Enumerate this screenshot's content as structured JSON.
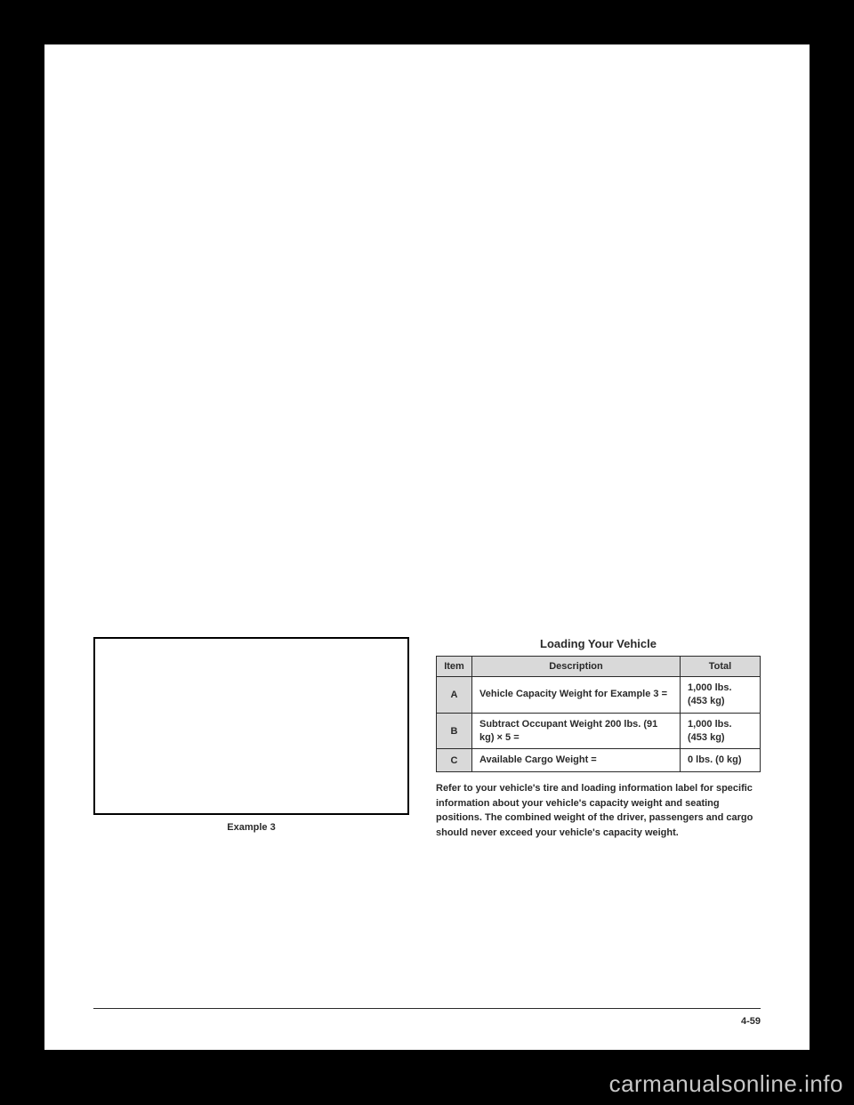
{
  "figure": {
    "caption": "Example 3"
  },
  "table": {
    "title": "Loading Your Vehicle",
    "headers": [
      "Item",
      "Description",
      "Total"
    ],
    "rows": [
      {
        "item": "A",
        "desc": "Vehicle Capacity Weight for Example 3 =",
        "total": "1,000 lbs. (453 kg)"
      },
      {
        "item": "B",
        "desc": "Subtract Occupant Weight 200 lbs. (91 kg) × 5 =",
        "total": "1,000 lbs. (453 kg)"
      },
      {
        "item": "C",
        "desc": "Available Cargo Weight =",
        "total": "0 lbs. (0 kg)"
      }
    ]
  },
  "bodytext": "Refer to your vehicle's tire and loading information label for specific information about your vehicle's capacity weight and seating positions. The combined weight of the driver, passengers and cargo should never exceed your vehicle's capacity weight.",
  "page_number": "4-59",
  "watermark": "carmanualsonline.info"
}
